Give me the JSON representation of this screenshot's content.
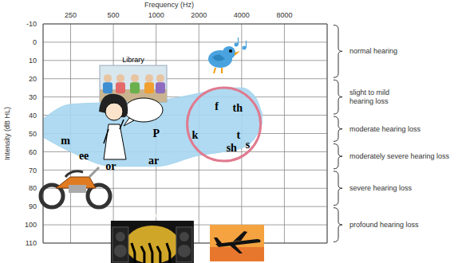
{
  "chart_data": {
    "type": "scatter",
    "x_label": "Frequency (Hz)",
    "y_label": "Intensity (dB HL)",
    "log": "x",
    "grid": true,
    "xlim": [
      160,
      16000
    ],
    "xticks": [
      250,
      500,
      1000,
      2000,
      4000,
      8000
    ],
    "ylim": [
      -10,
      110
    ],
    "yticks": [
      -10,
      0,
      10,
      20,
      30,
      40,
      50,
      60,
      70,
      80,
      90,
      100,
      110
    ],
    "color": "#000000",
    "points": [
      {
        "label": "m",
        "x": 230,
        "y": 54
      },
      {
        "label": "ee",
        "x": 310,
        "y": 62
      },
      {
        "label": "or",
        "x": 480,
        "y": 68
      },
      {
        "label": "P",
        "x": 1000,
        "y": 50
      },
      {
        "label": "ar",
        "x": 960,
        "y": 65
      },
      {
        "label": "k",
        "x": 1880,
        "y": 51
      },
      {
        "label": "f",
        "x": 2670,
        "y": 35
      },
      {
        "label": "th",
        "x": 3750,
        "y": 36
      },
      {
        "label": "t",
        "x": 3800,
        "y": 51
      },
      {
        "label": "sh",
        "x": 3400,
        "y": 58
      },
      {
        "label": "s",
        "x": 4420,
        "y": 56
      }
    ],
    "speech_area": {
      "color": "#a6d6ef",
      "x": [
        160,
        250,
        500,
        1000,
        2000,
        3000,
        4000,
        5000,
        5600
      ],
      "upper": [
        42,
        34,
        33,
        32,
        28,
        25,
        25,
        30,
        40
      ],
      "lower": [
        52,
        60,
        68,
        68,
        62,
        60,
        58,
        52,
        44
      ]
    },
    "highlight": {
      "x": 3000,
      "y": 45,
      "color": "#e07a8f"
    },
    "annotations": [
      {
        "text": "Library",
        "x": 690,
        "y": 11
      },
      {
        "text": "Band",
        "x": 940,
        "y": 96
      }
    ],
    "ranges": [
      {
        "label": "normal hearing",
        "from": -10,
        "to": 20
      },
      {
        "label": "slight to mild\nhearing loss",
        "from": 20,
        "to": 40
      },
      {
        "label": "moderate hearing loss",
        "from": 40,
        "to": 55
      },
      {
        "label": "moderately severe hearing loss",
        "from": 55,
        "to": 70
      },
      {
        "label": "severe hearing loss",
        "from": 70,
        "to": 90
      },
      {
        "label": "profound hearing loss",
        "from": 90,
        "to": 110
      }
    ]
  }
}
